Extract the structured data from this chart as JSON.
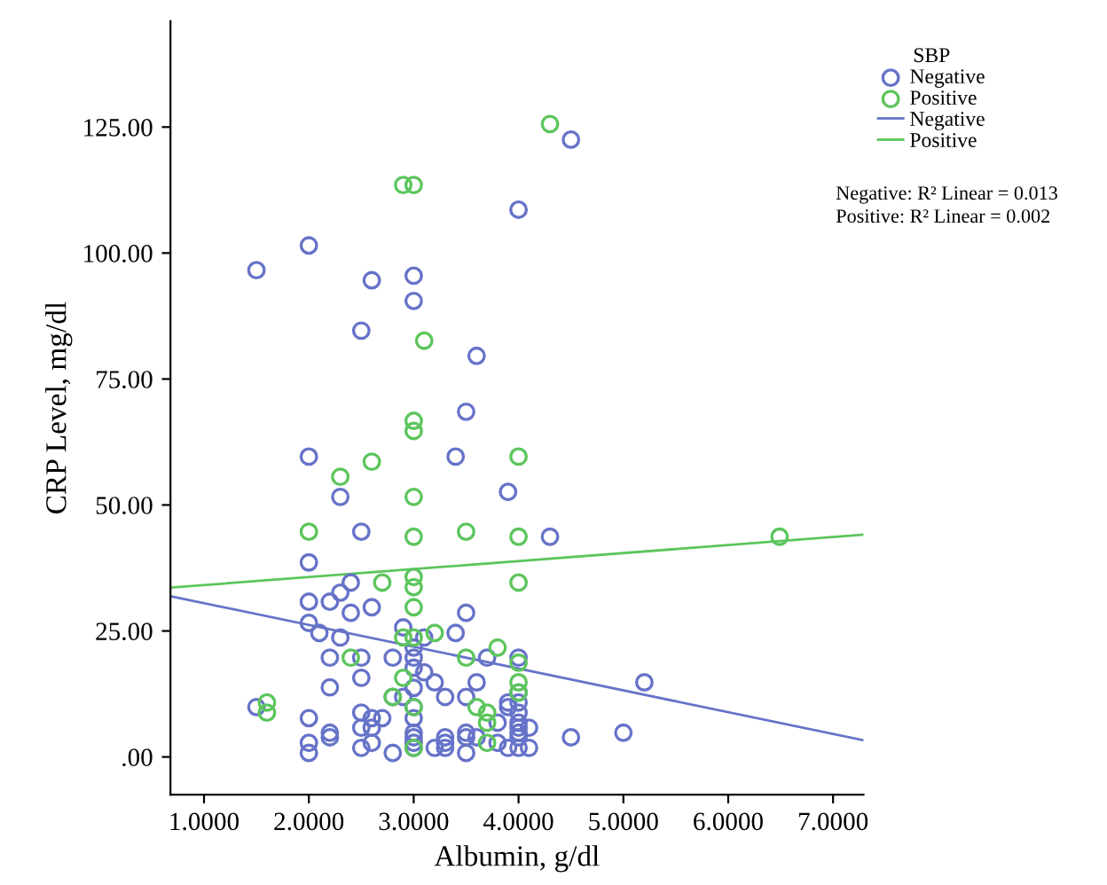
{
  "chart_data": {
    "type": "scatter",
    "xlabel": "Albumin, g/dl",
    "ylabel": "CRP Level, mg/dl",
    "legend_title": "SBP",
    "legend": "top right",
    "grid": false,
    "xlim": [
      0.68,
      7.29
    ],
    "ylim": [
      -7.5,
      146
    ],
    "xticks": [
      {
        "value": 1,
        "label": "1.0000"
      },
      {
        "value": 2,
        "label": "2.0000"
      },
      {
        "value": 3,
        "label": "3.0000"
      },
      {
        "value": 4,
        "label": "4.0000"
      },
      {
        "value": 5,
        "label": "5.0000"
      },
      {
        "value": 6,
        "label": "6.0000"
      },
      {
        "value": 7,
        "label": "7.0000"
      }
    ],
    "yticks": [
      {
        "value": 0,
        "label": ".00"
      },
      {
        "value": 25,
        "label": "25.00"
      },
      {
        "value": 50,
        "label": "50.00"
      },
      {
        "value": 75,
        "label": "75.00"
      },
      {
        "value": 100,
        "label": "100.00"
      },
      {
        "value": 125,
        "label": "125.00"
      }
    ],
    "annotations": [
      "Negative: R² Linear = 0.013",
      "Positive: R² Linear = 0.002"
    ],
    "series": [
      {
        "name": "Negative",
        "marker": "circle",
        "color": "#6673c8",
        "x": [
          4.5,
          4.0,
          2.0,
          1.5,
          2.6,
          3.0,
          3.0,
          2.5,
          3.6,
          3.5,
          2.0,
          3.4,
          2.3,
          3.9,
          2.5,
          4.3,
          2.0,
          2.4,
          2.3,
          2.0,
          2.2,
          2.6,
          2.4,
          3.5,
          2.0,
          2.1,
          2.3,
          2.9,
          3.1,
          3.4,
          3.0,
          3.0,
          2.2,
          2.5,
          2.8,
          3.7,
          4.0,
          3.0,
          3.1,
          2.5,
          3.2,
          3.6,
          5.2,
          2.2,
          3.0,
          2.8,
          2.9,
          3.3,
          3.5,
          4.0,
          3.9,
          3.9,
          4.0,
          1.5,
          3.0,
          2.5,
          2.6,
          2.7,
          3.0,
          3.8,
          4.0,
          4.0,
          2.0,
          2.5,
          2.6,
          2.2,
          2.2,
          3.0,
          3.0,
          3.0,
          3.3,
          3.3,
          3.5,
          3.5,
          3.6,
          4.0,
          4.0,
          4.0,
          4.1,
          4.5,
          5.0,
          2.0,
          2.0,
          2.5,
          2.6,
          2.8,
          3.0,
          3.2,
          3.3,
          3.5,
          3.8,
          3.9,
          4.0,
          4.1
        ],
        "values": [
          122.5,
          108.6,
          101.5,
          96.6,
          94.6,
          95.5,
          90.5,
          84.6,
          79.6,
          68.5,
          59.6,
          59.6,
          51.6,
          52.6,
          44.7,
          43.7,
          38.6,
          34.6,
          32.6,
          30.8,
          30.8,
          29.7,
          28.6,
          28.6,
          26.6,
          24.6,
          23.7,
          25.7,
          23.7,
          24.6,
          21.7,
          19.7,
          19.7,
          19.7,
          19.7,
          19.7,
          19.7,
          17.7,
          16.8,
          15.7,
          14.8,
          14.8,
          14.8,
          13.8,
          13.7,
          11.9,
          11.9,
          11.9,
          11.9,
          12.8,
          10.8,
          9.9,
          10.8,
          9.9,
          9.9,
          8.8,
          7.7,
          7.7,
          7.7,
          6.8,
          8.8,
          6.8,
          7.7,
          5.8,
          5.8,
          4.8,
          3.9,
          4.8,
          3.9,
          2.8,
          3.9,
          2.8,
          4.8,
          3.9,
          3.9,
          5.8,
          4.8,
          3.9,
          5.8,
          3.9,
          4.8,
          2.8,
          0.8,
          1.8,
          2.8,
          0.8,
          1.8,
          1.8,
          1.8,
          0.8,
          2.8,
          1.8,
          1.8,
          1.8
        ]
      },
      {
        "name": "Positive",
        "marker": "circle",
        "color": "#5cc55c",
        "x": [
          4.3,
          2.9,
          3.0,
          3.1,
          3.0,
          3.0,
          4.0,
          2.6,
          2.3,
          3.0,
          2.0,
          3.0,
          3.5,
          4.0,
          6.49,
          2.7,
          3.0,
          3.0,
          4.0,
          3.0,
          2.9,
          3.0,
          3.2,
          3.8,
          2.4,
          3.5,
          4.0,
          2.9,
          4.0,
          4.0,
          2.8,
          3.6,
          1.6,
          1.6,
          3.0,
          3.7,
          3.7,
          3.0,
          3.7
        ],
        "values": [
          125.6,
          113.5,
          113.5,
          82.6,
          66.7,
          64.7,
          59.6,
          58.6,
          55.6,
          51.6,
          44.7,
          43.7,
          44.7,
          43.7,
          43.7,
          34.6,
          35.7,
          33.7,
          34.6,
          29.7,
          23.7,
          23.7,
          24.6,
          21.7,
          19.7,
          19.7,
          18.7,
          15.7,
          14.8,
          12.8,
          11.9,
          9.9,
          10.8,
          8.8,
          9.9,
          8.8,
          6.8,
          1.8,
          2.8
        ]
      },
      {
        "name": "Negative",
        "type": "line",
        "marker": "none",
        "line_style": "solid",
        "color": "#6673c8",
        "x": [
          0.68,
          7.29
        ],
        "values": [
          31.9,
          3.3
        ]
      },
      {
        "name": "Positive",
        "type": "line",
        "marker": "none",
        "line_style": "solid",
        "color": "#5cc55c",
        "x": [
          0.68,
          7.29
        ],
        "values": [
          33.6,
          44.1
        ]
      }
    ]
  }
}
